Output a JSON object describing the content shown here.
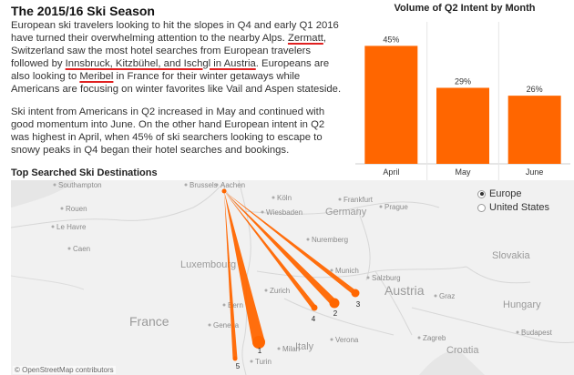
{
  "article": {
    "title": "The 2015/16 Ski Season",
    "p1": [
      {
        "t": "European ski travelers looking to hit the slopes in Q4 and early Q1 2016 have turned their overwhelming attention to the nearby Alps. ",
        "u": false
      },
      {
        "t": "Zermatt",
        "u": true
      },
      {
        "t": ", Switzerland saw the most hotel searches from European travelers followed by ",
        "u": false
      },
      {
        "t": "Innsbruck, Kitzbühel, and Ischgl in Austria",
        "u": true
      },
      {
        "t": ". Europeans are also looking to ",
        "u": false
      },
      {
        "t": "Meribel",
        "u": true
      },
      {
        "t": " in France for their winter getaways while Americans are focusing on winter favorites like Vail and Aspen stateside.",
        "u": false
      }
    ],
    "p2": "Ski intent from Americans in Q2 increased in May and continued with good momentum into June.  On the other hand European intent in Q2 was highest in April, when 45% of ski searchers looking to escape to snowy peaks in Q4 began their hotel searches and bookings."
  },
  "chart_data": {
    "type": "bar",
    "title": "Volume of Q2 Intent by Month",
    "categories": [
      "April",
      "May",
      "June"
    ],
    "values": [
      45,
      29,
      26
    ],
    "value_labels": [
      "45%",
      "29%",
      "26%"
    ],
    "unit": "%",
    "ylim": [
      0,
      50
    ],
    "grid": false,
    "color": "#ff6600"
  },
  "map": {
    "title": "Top Searched Ski Destinations",
    "attribution": "© OpenStreetMap contributors",
    "legend": {
      "items": [
        {
          "label": "Europe",
          "selected": true
        },
        {
          "label": "United States",
          "selected": false
        }
      ]
    },
    "route_color": "#ff6600",
    "route_labels": [
      "1",
      "2",
      "3",
      "4",
      "5"
    ],
    "place_labels": {
      "large": [
        "France",
        "Austria"
      ],
      "medium": [
        "Germany",
        "Slovakia",
        "Hungary",
        "Croatia",
        "Italy",
        "Luxembourg"
      ],
      "small": [
        "Southampton",
        "Brussels",
        "Aachen",
        "Köln",
        "Frankfurt",
        "Wiesbaden",
        "Prague",
        "Rouen",
        "Le Havre",
        "Caen",
        "Munich",
        "Bern",
        "Geneva",
        "Turin",
        "Milan",
        "Verona",
        "Zagreb",
        "Graz",
        "Budapest",
        "Nuremberg",
        "Salzburg",
        "Zurich"
      ]
    }
  }
}
